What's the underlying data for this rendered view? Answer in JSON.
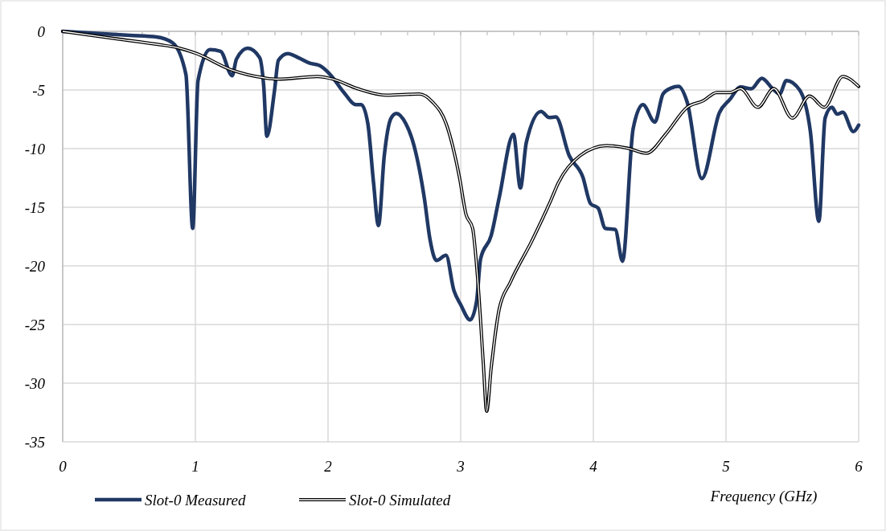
{
  "chart_data": {
    "type": "line",
    "xlabel": "Frequency (GHz)",
    "xlim": [
      0,
      6
    ],
    "xticks": [
      0,
      1,
      2,
      3,
      4,
      5,
      6
    ],
    "ylim": [
      -35,
      0
    ],
    "yticks": [
      0,
      -5,
      -10,
      -15,
      -20,
      -25,
      -30,
      -35
    ],
    "grid": true,
    "legend": "bottom left",
    "series": [
      {
        "name": "Slot-0 Measured",
        "color": "#203864",
        "line_style": "solid",
        "x": [
          0,
          0.505,
          0.707,
          0.828,
          0.929,
          0.98,
          1.02,
          1.11,
          1.19,
          1.277,
          1.31,
          1.394,
          1.485,
          1.515,
          1.539,
          1.596,
          1.626,
          1.697,
          1.777,
          1.858,
          1.939,
          2.02,
          2.12,
          2.21,
          2.25,
          2.3,
          2.343,
          2.38,
          2.424,
          2.475,
          2.515,
          2.586,
          2.647,
          2.727,
          2.768,
          2.818,
          2.889,
          2.949,
          3.0,
          3.071,
          3.12,
          3.15,
          3.23,
          3.29,
          3.398,
          3.45,
          3.495,
          3.606,
          3.667,
          3.717,
          3.818,
          3.92,
          3.979,
          4.036,
          4.09,
          4.165,
          4.22,
          4.3,
          4.373,
          4.464,
          4.525,
          4.585,
          4.642,
          4.707,
          4.818,
          4.95,
          5.03,
          5.11,
          5.19,
          5.27,
          5.353,
          5.404,
          5.455,
          5.555,
          5.636,
          5.7,
          5.747,
          5.798,
          5.838,
          5.88,
          5.96,
          6.0
        ],
        "values": [
          0,
          -0.34,
          -0.48,
          -0.98,
          -3.7,
          -16.8,
          -4.2,
          -1.56,
          -1.7,
          -3.78,
          -2.36,
          -1.44,
          -2.25,
          -4.65,
          -8.95,
          -5.1,
          -2.47,
          -1.9,
          -2.25,
          -2.7,
          -2.93,
          -3.73,
          -5.22,
          -6.25,
          -6.25,
          -7.86,
          -12.9,
          -16.56,
          -10.6,
          -7.4,
          -7.0,
          -7.86,
          -9.7,
          -14.3,
          -17.7,
          -19.54,
          -19.1,
          -22.1,
          -23.3,
          -24.6,
          -23.0,
          -19.4,
          -17.4,
          -14.2,
          -8.78,
          -13.36,
          -9.46,
          -6.83,
          -7.35,
          -7.3,
          -10.6,
          -12.4,
          -14.7,
          -15.07,
          -16.8,
          -16.9,
          -19.6,
          -8.3,
          -6.25,
          -7.74,
          -5.34,
          -4.84,
          -4.7,
          -6.03,
          -12.55,
          -6.94,
          -5.8,
          -4.75,
          -4.9,
          -4.0,
          -4.9,
          -5.34,
          -4.19,
          -5.0,
          -8.55,
          -16.2,
          -7.4,
          -6.48,
          -7.06,
          -6.9,
          -8.55,
          -8.0
        ]
      },
      {
        "name": "Slot-0 Simulated",
        "color": "#000000",
        "line_style": "solid",
        "x": [
          0,
          0.404,
          0.707,
          0.868,
          1.01,
          1.27,
          1.515,
          1.616,
          1.919,
          2.04,
          2.22,
          2.44,
          2.687,
          2.788,
          2.89,
          2.99,
          3.04,
          3.09,
          3.13,
          3.17,
          3.196,
          3.23,
          3.29,
          3.374,
          3.535,
          3.676,
          3.737,
          3.9,
          4.1,
          4.26,
          4.4,
          4.545,
          4.707,
          4.83,
          4.93,
          5.03,
          5.11,
          5.24,
          5.36,
          5.5,
          5.63,
          5.74,
          5.88,
          6.0
        ],
        "values": [
          0,
          -0.64,
          -1.1,
          -1.4,
          -1.9,
          -3.28,
          -3.96,
          -4.08,
          -3.85,
          -4.08,
          -4.88,
          -5.45,
          -5.34,
          -6.03,
          -7.86,
          -12.4,
          -15.6,
          -16.8,
          -21.4,
          -28.2,
          -32.4,
          -28.7,
          -23.7,
          -21.4,
          -17.9,
          -14.5,
          -12.9,
          -10.6,
          -9.74,
          -9.97,
          -10.4,
          -8.78,
          -6.48,
          -5.91,
          -5.22,
          -5.22,
          -4.88,
          -6.48,
          -4.88,
          -7.4,
          -5.52,
          -6.48,
          -3.85,
          -4.7
        ]
      }
    ]
  }
}
